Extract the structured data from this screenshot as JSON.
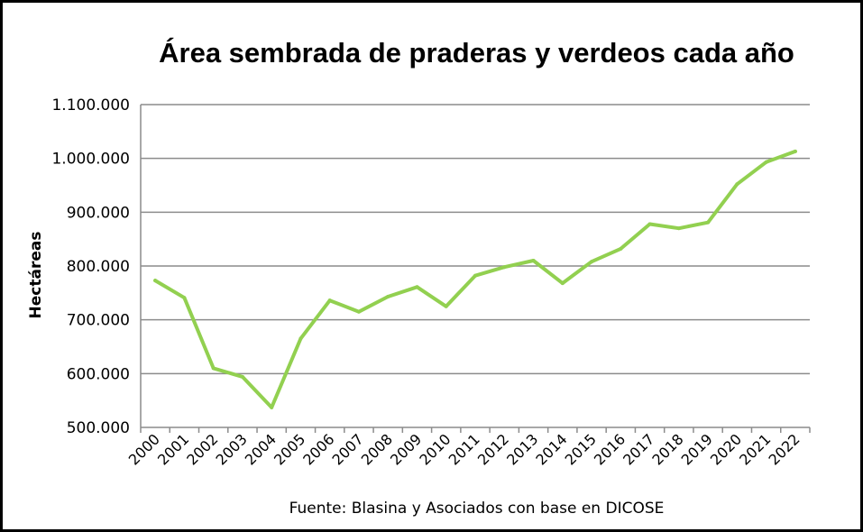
{
  "chart_data": {
    "type": "line",
    "title": "Área sembrada de praderas y verdeos cada año",
    "ylabel": "Hectáreas",
    "xlabel": "",
    "source": "Fuente: Blasina y Asociados con base en DICOSE",
    "categories": [
      "2000",
      "2001",
      "2002",
      "2003",
      "2004",
      "2005",
      "2006",
      "2007",
      "2008",
      "2009",
      "2010",
      "2011",
      "2012",
      "2013",
      "2014",
      "2015",
      "2016",
      "2017",
      "2018",
      "2019",
      "2020",
      "2021",
      "2022"
    ],
    "series": [
      {
        "values": [
          773000,
          741000,
          610000,
          594000,
          537000,
          665000,
          736000,
          715000,
          743000,
          761000,
          725000,
          782000,
          798000,
          810000,
          768000,
          808000,
          832000,
          878000,
          870000,
          881000,
          952000,
          993000,
          1013000
        ],
        "color": "#92d050"
      }
    ],
    "ylim": [
      500000,
      1100000
    ],
    "yticks": [
      {
        "value": 500000,
        "label": "500.000"
      },
      {
        "value": 600000,
        "label": "600.000"
      },
      {
        "value": 700000,
        "label": "700.000"
      },
      {
        "value": 800000,
        "label": "800.000"
      },
      {
        "value": 900000,
        "label": "900.000"
      },
      {
        "value": 1000000,
        "label": "1.000.000"
      },
      {
        "value": 1100000,
        "label": "1.100.000"
      }
    ],
    "grid": true,
    "legend": "none"
  }
}
